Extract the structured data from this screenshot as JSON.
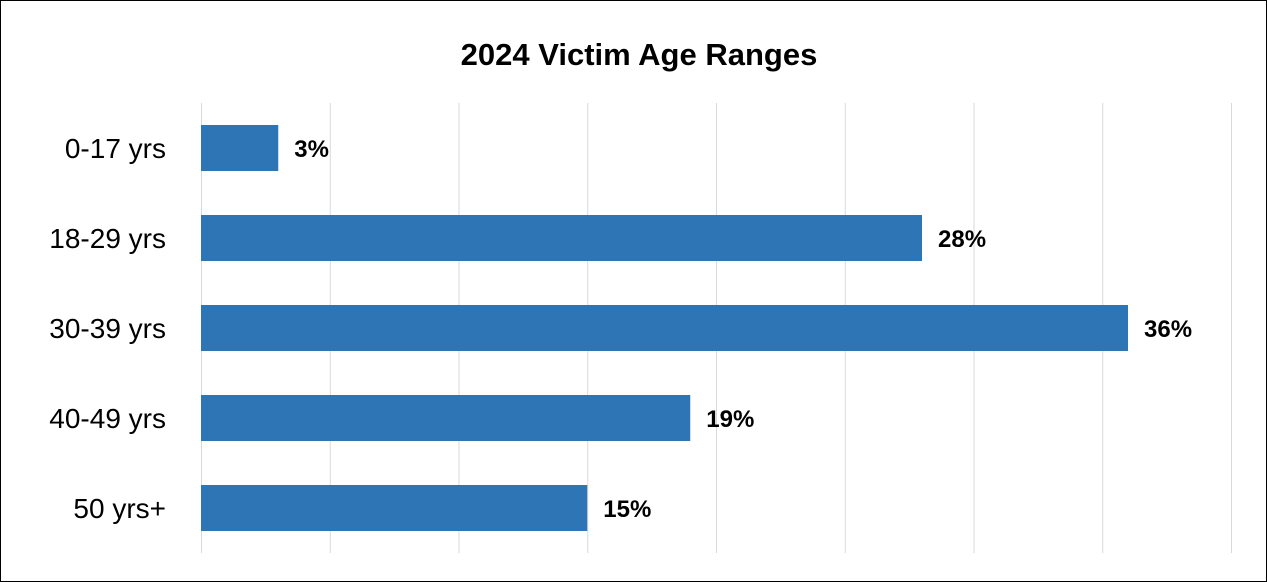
{
  "chart_data": {
    "type": "bar",
    "orientation": "horizontal",
    "title": "2024 Victim Age Ranges",
    "categories": [
      "0-17 yrs",
      "18-29 yrs",
      "30-39 yrs",
      "40-49 yrs",
      "50 yrs+"
    ],
    "values": [
      3,
      28,
      36,
      19,
      15
    ],
    "data_labels": [
      "3%",
      "28%",
      "36%",
      "19%",
      "15%"
    ],
    "xlim": [
      0,
      40
    ],
    "xlabel": "",
    "ylabel": "",
    "grid": true,
    "legend": "none",
    "bar_color": "#2e75b6",
    "gridline_color": "#d9d9d9"
  }
}
